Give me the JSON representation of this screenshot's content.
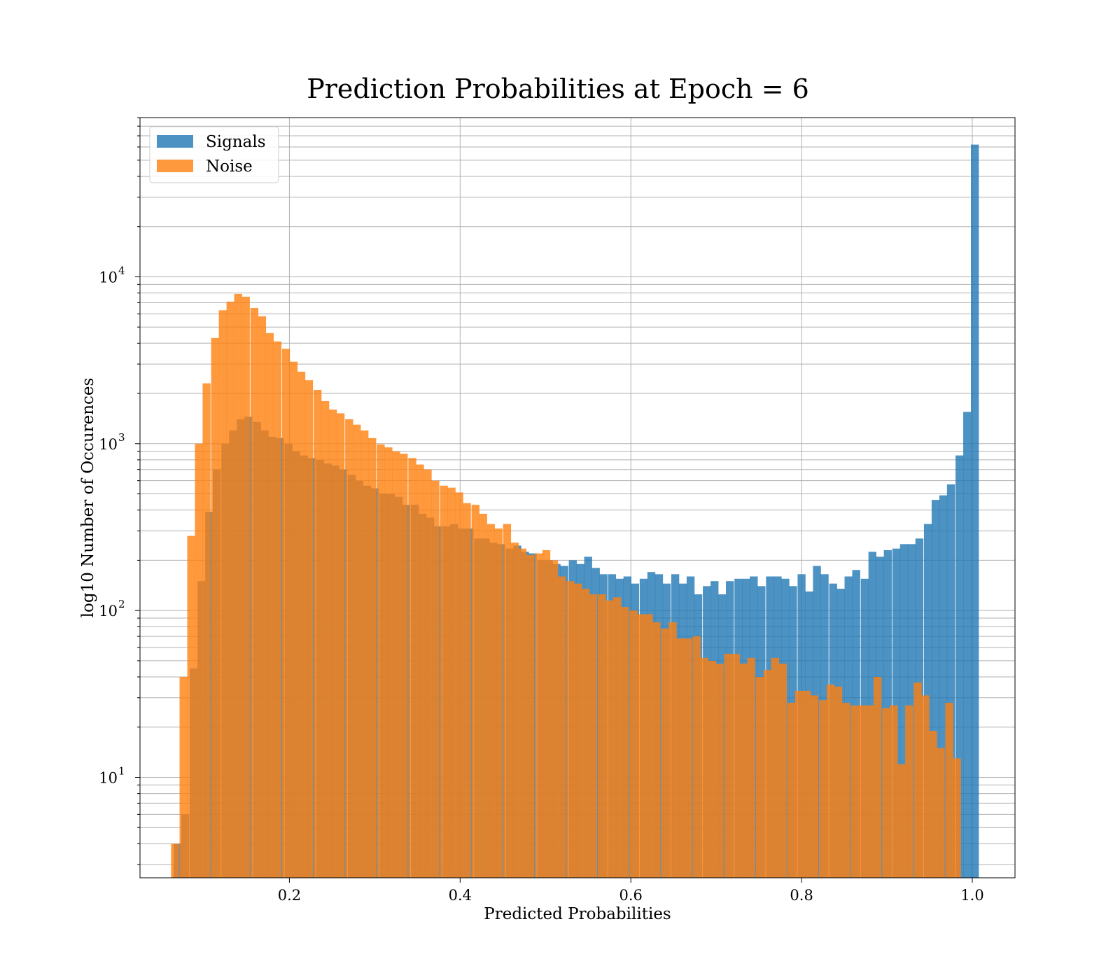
{
  "chart_data": {
    "type": "bar",
    "title": "Prediction Probabilities at Epoch = 6",
    "xlabel": "Predicted Probabilities",
    "ylabel": "log10 Number of Occurences",
    "yscale": "log",
    "xlim": [
      0.025,
      1.05
    ],
    "ylim": [
      2.5,
      90000
    ],
    "xticks": [
      0.2,
      0.4,
      0.6,
      0.8,
      1.0
    ],
    "xtick_labels": [
      "0.2",
      "0.4",
      "0.6",
      "0.8",
      "1.0"
    ],
    "ytick_base": "10",
    "yticks": [
      10,
      100,
      1000,
      10000
    ],
    "ytick_exponents": [
      "1",
      "2",
      "3",
      "4"
    ],
    "grid": true,
    "legend_position": "top-left",
    "bin_width": 0.0093,
    "series": [
      {
        "name": "Signals",
        "color": "#1f77b4",
        "bins": [
          {
            "x": 0.069,
            "y": 4
          },
          {
            "x": 0.078,
            "y": 6
          },
          {
            "x": 0.088,
            "y": 45
          },
          {
            "x": 0.097,
            "y": 150
          },
          {
            "x": 0.106,
            "y": 390
          },
          {
            "x": 0.115,
            "y": 700
          },
          {
            "x": 0.125,
            "y": 1000
          },
          {
            "x": 0.134,
            "y": 1200
          },
          {
            "x": 0.143,
            "y": 1400
          },
          {
            "x": 0.152,
            "y": 1450
          },
          {
            "x": 0.162,
            "y": 1350
          },
          {
            "x": 0.171,
            "y": 1200
          },
          {
            "x": 0.18,
            "y": 1100
          },
          {
            "x": 0.189,
            "y": 1080
          },
          {
            "x": 0.199,
            "y": 1000
          },
          {
            "x": 0.208,
            "y": 900
          },
          {
            "x": 0.217,
            "y": 850
          },
          {
            "x": 0.226,
            "y": 820
          },
          {
            "x": 0.236,
            "y": 800
          },
          {
            "x": 0.245,
            "y": 760
          },
          {
            "x": 0.254,
            "y": 740
          },
          {
            "x": 0.263,
            "y": 700
          },
          {
            "x": 0.273,
            "y": 650
          },
          {
            "x": 0.282,
            "y": 600
          },
          {
            "x": 0.291,
            "y": 560
          },
          {
            "x": 0.3,
            "y": 540
          },
          {
            "x": 0.31,
            "y": 500
          },
          {
            "x": 0.319,
            "y": 500
          },
          {
            "x": 0.328,
            "y": 480
          },
          {
            "x": 0.337,
            "y": 430
          },
          {
            "x": 0.347,
            "y": 430
          },
          {
            "x": 0.356,
            "y": 380
          },
          {
            "x": 0.365,
            "y": 360
          },
          {
            "x": 0.374,
            "y": 320
          },
          {
            "x": 0.384,
            "y": 320
          },
          {
            "x": 0.393,
            "y": 330
          },
          {
            "x": 0.402,
            "y": 310
          },
          {
            "x": 0.411,
            "y": 310
          },
          {
            "x": 0.421,
            "y": 270
          },
          {
            "x": 0.43,
            "y": 270
          },
          {
            "x": 0.439,
            "y": 255
          },
          {
            "x": 0.448,
            "y": 250
          },
          {
            "x": 0.458,
            "y": 235
          },
          {
            "x": 0.467,
            "y": 245
          },
          {
            "x": 0.476,
            "y": 225
          },
          {
            "x": 0.485,
            "y": 220
          },
          {
            "x": 0.495,
            "y": 200
          },
          {
            "x": 0.504,
            "y": 200
          },
          {
            "x": 0.513,
            "y": 190
          },
          {
            "x": 0.522,
            "y": 185
          },
          {
            "x": 0.532,
            "y": 200
          },
          {
            "x": 0.541,
            "y": 190
          },
          {
            "x": 0.55,
            "y": 210
          },
          {
            "x": 0.559,
            "y": 180
          },
          {
            "x": 0.568,
            "y": 165
          },
          {
            "x": 0.578,
            "y": 165
          },
          {
            "x": 0.587,
            "y": 155
          },
          {
            "x": 0.596,
            "y": 160
          },
          {
            "x": 0.605,
            "y": 145
          },
          {
            "x": 0.615,
            "y": 155
          },
          {
            "x": 0.624,
            "y": 170
          },
          {
            "x": 0.633,
            "y": 165
          },
          {
            "x": 0.642,
            "y": 145
          },
          {
            "x": 0.652,
            "y": 165
          },
          {
            "x": 0.661,
            "y": 145
          },
          {
            "x": 0.67,
            "y": 160
          },
          {
            "x": 0.679,
            "y": 125
          },
          {
            "x": 0.689,
            "y": 140
          },
          {
            "x": 0.698,
            "y": 150
          },
          {
            "x": 0.707,
            "y": 125
          },
          {
            "x": 0.716,
            "y": 150
          },
          {
            "x": 0.726,
            "y": 155
          },
          {
            "x": 0.735,
            "y": 155
          },
          {
            "x": 0.744,
            "y": 160
          },
          {
            "x": 0.753,
            "y": 140
          },
          {
            "x": 0.763,
            "y": 160
          },
          {
            "x": 0.772,
            "y": 160
          },
          {
            "x": 0.781,
            "y": 155
          },
          {
            "x": 0.79,
            "y": 140
          },
          {
            "x": 0.8,
            "y": 165
          },
          {
            "x": 0.809,
            "y": 130
          },
          {
            "x": 0.818,
            "y": 185
          },
          {
            "x": 0.827,
            "y": 165
          },
          {
            "x": 0.837,
            "y": 145
          },
          {
            "x": 0.846,
            "y": 135
          },
          {
            "x": 0.855,
            "y": 160
          },
          {
            "x": 0.864,
            "y": 175
          },
          {
            "x": 0.874,
            "y": 155
          },
          {
            "x": 0.883,
            "y": 225
          },
          {
            "x": 0.892,
            "y": 210
          },
          {
            "x": 0.901,
            "y": 230
          },
          {
            "x": 0.911,
            "y": 235
          },
          {
            "x": 0.92,
            "y": 250
          },
          {
            "x": 0.929,
            "y": 250
          },
          {
            "x": 0.938,
            "y": 270
          },
          {
            "x": 0.948,
            "y": 330
          },
          {
            "x": 0.957,
            "y": 460
          },
          {
            "x": 0.966,
            "y": 490
          },
          {
            "x": 0.975,
            "y": 570
          },
          {
            "x": 0.985,
            "y": 850
          },
          {
            "x": 0.994,
            "y": 1550
          },
          {
            "x": 1.003,
            "y": 62000
          }
        ]
      },
      {
        "name": "Noise",
        "color": "#ff7f0e",
        "bins": [
          {
            "x": 0.066,
            "y": 4
          },
          {
            "x": 0.076,
            "y": 40
          },
          {
            "x": 0.085,
            "y": 280
          },
          {
            "x": 0.094,
            "y": 1000
          },
          {
            "x": 0.103,
            "y": 2300
          },
          {
            "x": 0.113,
            "y": 4300
          },
          {
            "x": 0.122,
            "y": 6300
          },
          {
            "x": 0.131,
            "y": 7100
          },
          {
            "x": 0.14,
            "y": 7900
          },
          {
            "x": 0.149,
            "y": 7600
          },
          {
            "x": 0.159,
            "y": 6500
          },
          {
            "x": 0.168,
            "y": 5800
          },
          {
            "x": 0.177,
            "y": 4600
          },
          {
            "x": 0.186,
            "y": 4100
          },
          {
            "x": 0.196,
            "y": 3700
          },
          {
            "x": 0.205,
            "y": 3100
          },
          {
            "x": 0.214,
            "y": 2700
          },
          {
            "x": 0.223,
            "y": 2400
          },
          {
            "x": 0.233,
            "y": 2100
          },
          {
            "x": 0.242,
            "y": 1800
          },
          {
            "x": 0.251,
            "y": 1600
          },
          {
            "x": 0.26,
            "y": 1520
          },
          {
            "x": 0.27,
            "y": 1400
          },
          {
            "x": 0.279,
            "y": 1300
          },
          {
            "x": 0.288,
            "y": 1200
          },
          {
            "x": 0.297,
            "y": 1080
          },
          {
            "x": 0.307,
            "y": 990
          },
          {
            "x": 0.316,
            "y": 950
          },
          {
            "x": 0.325,
            "y": 900
          },
          {
            "x": 0.334,
            "y": 870
          },
          {
            "x": 0.344,
            "y": 820
          },
          {
            "x": 0.353,
            "y": 750
          },
          {
            "x": 0.362,
            "y": 700
          },
          {
            "x": 0.371,
            "y": 600
          },
          {
            "x": 0.381,
            "y": 560
          },
          {
            "x": 0.39,
            "y": 545
          },
          {
            "x": 0.399,
            "y": 510
          },
          {
            "x": 0.408,
            "y": 440
          },
          {
            "x": 0.418,
            "y": 430
          },
          {
            "x": 0.427,
            "y": 380
          },
          {
            "x": 0.436,
            "y": 330
          },
          {
            "x": 0.445,
            "y": 310
          },
          {
            "x": 0.455,
            "y": 330
          },
          {
            "x": 0.464,
            "y": 255
          },
          {
            "x": 0.473,
            "y": 235
          },
          {
            "x": 0.482,
            "y": 215
          },
          {
            "x": 0.492,
            "y": 220
          },
          {
            "x": 0.501,
            "y": 230
          },
          {
            "x": 0.51,
            "y": 200
          },
          {
            "x": 0.519,
            "y": 160
          },
          {
            "x": 0.529,
            "y": 150
          },
          {
            "x": 0.538,
            "y": 145
          },
          {
            "x": 0.547,
            "y": 135
          },
          {
            "x": 0.556,
            "y": 125
          },
          {
            "x": 0.566,
            "y": 125
          },
          {
            "x": 0.575,
            "y": 115
          },
          {
            "x": 0.584,
            "y": 120
          },
          {
            "x": 0.593,
            "y": 105
          },
          {
            "x": 0.603,
            "y": 100
          },
          {
            "x": 0.612,
            "y": 95
          },
          {
            "x": 0.621,
            "y": 95
          },
          {
            "x": 0.63,
            "y": 85
          },
          {
            "x": 0.64,
            "y": 78
          },
          {
            "x": 0.649,
            "y": 85
          },
          {
            "x": 0.658,
            "y": 68
          },
          {
            "x": 0.667,
            "y": 68
          },
          {
            "x": 0.677,
            "y": 70
          },
          {
            "x": 0.686,
            "y": 52
          },
          {
            "x": 0.695,
            "y": 50
          },
          {
            "x": 0.704,
            "y": 48
          },
          {
            "x": 0.714,
            "y": 55
          },
          {
            "x": 0.723,
            "y": 55
          },
          {
            "x": 0.732,
            "y": 48
          },
          {
            "x": 0.741,
            "y": 52
          },
          {
            "x": 0.751,
            "y": 40
          },
          {
            "x": 0.76,
            "y": 44
          },
          {
            "x": 0.769,
            "y": 52
          },
          {
            "x": 0.778,
            "y": 48
          },
          {
            "x": 0.788,
            "y": 28
          },
          {
            "x": 0.797,
            "y": 33
          },
          {
            "x": 0.806,
            "y": 33
          },
          {
            "x": 0.815,
            "y": 31
          },
          {
            "x": 0.825,
            "y": 29
          },
          {
            "x": 0.834,
            "y": 36
          },
          {
            "x": 0.843,
            "y": 35
          },
          {
            "x": 0.852,
            "y": 28
          },
          {
            "x": 0.862,
            "y": 27
          },
          {
            "x": 0.871,
            "y": 27
          },
          {
            "x": 0.88,
            "y": 27
          },
          {
            "x": 0.889,
            "y": 40
          },
          {
            "x": 0.899,
            "y": 26
          },
          {
            "x": 0.908,
            "y": 27
          },
          {
            "x": 0.917,
            "y": 12
          },
          {
            "x": 0.926,
            "y": 27
          },
          {
            "x": 0.936,
            "y": 37
          },
          {
            "x": 0.945,
            "y": 31
          },
          {
            "x": 0.954,
            "y": 19
          },
          {
            "x": 0.963,
            "y": 15
          },
          {
            "x": 0.973,
            "y": 28
          },
          {
            "x": 0.982,
            "y": 13
          }
        ]
      }
    ]
  }
}
